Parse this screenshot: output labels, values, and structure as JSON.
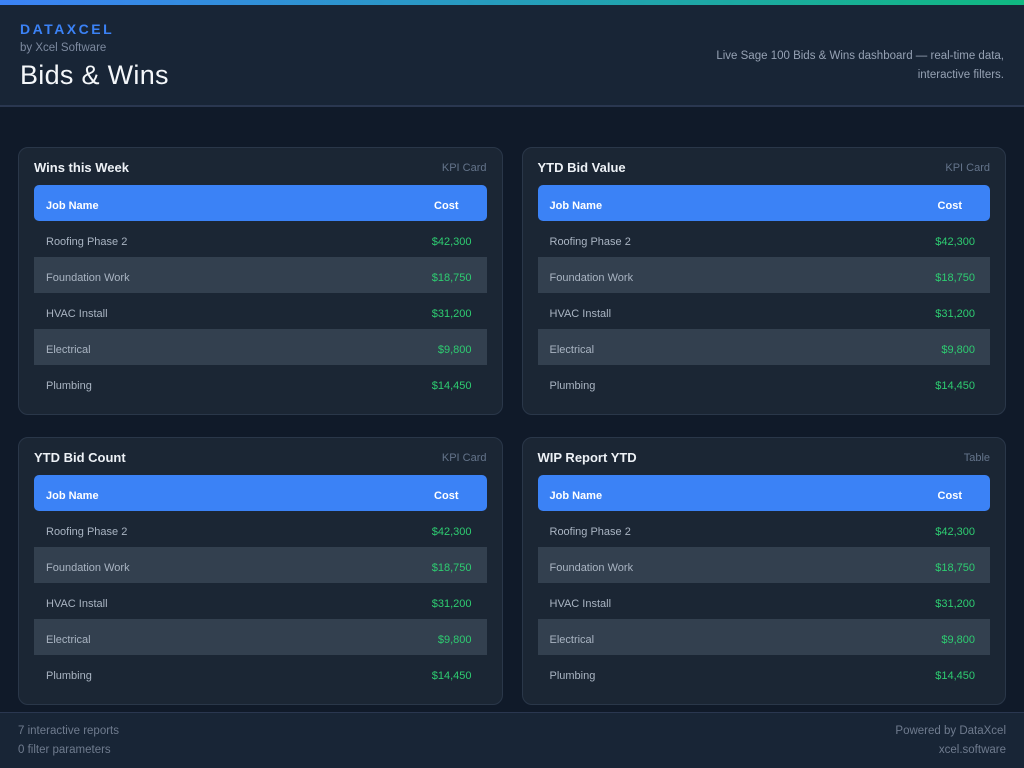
{
  "colors": {
    "accent_blue": "#3b82f6",
    "success_green": "#2ecc71",
    "gradient_start": "#3b82f6",
    "gradient_end": "#10b981"
  },
  "header": {
    "brand": "DATAXCEL",
    "byline": "by Xcel Software",
    "title": "Bids & Wins",
    "description_line1": "Live Sage 100 Bids & Wins dashboard — real-time data,",
    "description_line2": "interactive filters."
  },
  "cards": [
    {
      "title": "Wins this Week",
      "badge": "KPI Card",
      "columns": [
        "Job Name",
        "Cost"
      ],
      "rows": [
        {
          "job": "Roofing Phase 2",
          "cost": "$42,300"
        },
        {
          "job": "Foundation Work",
          "cost": "$18,750"
        },
        {
          "job": "HVAC Install",
          "cost": "$31,200"
        },
        {
          "job": "Electrical",
          "cost": "$9,800"
        },
        {
          "job": "Plumbing",
          "cost": "$14,450"
        }
      ]
    },
    {
      "title": "YTD Bid Value",
      "badge": "KPI Card",
      "columns": [
        "Job Name",
        "Cost"
      ],
      "rows": [
        {
          "job": "Roofing Phase 2",
          "cost": "$42,300"
        },
        {
          "job": "Foundation Work",
          "cost": "$18,750"
        },
        {
          "job": "HVAC Install",
          "cost": "$31,200"
        },
        {
          "job": "Electrical",
          "cost": "$9,800"
        },
        {
          "job": "Plumbing",
          "cost": "$14,450"
        }
      ]
    },
    {
      "title": "YTD Bid Count",
      "badge": "KPI Card",
      "columns": [
        "Job Name",
        "Cost"
      ],
      "rows": [
        {
          "job": "Roofing Phase 2",
          "cost": "$42,300"
        },
        {
          "job": "Foundation Work",
          "cost": "$18,750"
        },
        {
          "job": "HVAC Install",
          "cost": "$31,200"
        },
        {
          "job": "Electrical",
          "cost": "$9,800"
        },
        {
          "job": "Plumbing",
          "cost": "$14,450"
        }
      ]
    },
    {
      "title": "WIP Report YTD",
      "badge": "Table",
      "columns": [
        "Job Name",
        "Cost"
      ],
      "rows": [
        {
          "job": "Roofing Phase 2",
          "cost": "$42,300"
        },
        {
          "job": "Foundation Work",
          "cost": "$18,750"
        },
        {
          "job": "HVAC Install",
          "cost": "$31,200"
        },
        {
          "job": "Electrical",
          "cost": "$9,800"
        },
        {
          "job": "Plumbing",
          "cost": "$14,450"
        }
      ]
    }
  ],
  "footer": {
    "reports_count": "7 interactive reports",
    "filters_count": "0 filter parameters",
    "powered_by": "Powered by DataXcel",
    "website": "xcel.software"
  }
}
